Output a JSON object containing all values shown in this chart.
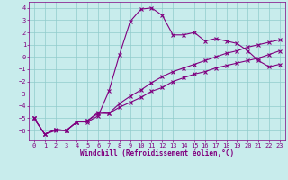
{
  "xlabel": "Windchill (Refroidissement éolien,°C)",
  "ylabel": "",
  "xlim": [
    -0.5,
    23.5
  ],
  "ylim": [
    -6.8,
    4.5
  ],
  "yticks": [
    4,
    3,
    2,
    1,
    0,
    -1,
    -2,
    -3,
    -4,
    -5,
    -6
  ],
  "xticks": [
    0,
    1,
    2,
    3,
    4,
    5,
    6,
    7,
    8,
    9,
    10,
    11,
    12,
    13,
    14,
    15,
    16,
    17,
    18,
    19,
    20,
    21,
    22,
    23
  ],
  "bg_color": "#c8ecec",
  "line_color": "#800080",
  "grid_color": "#90cccc",
  "line1_x": [
    0,
    1,
    2,
    3,
    4,
    5,
    6,
    7,
    8,
    9,
    10,
    11,
    12,
    13,
    14,
    15,
    16,
    17,
    18,
    19,
    20,
    21,
    22,
    23
  ],
  "line1_y": [
    -5.0,
    -6.3,
    -6.0,
    -6.0,
    -5.3,
    -5.3,
    -4.8,
    -2.8,
    0.2,
    2.9,
    3.9,
    4.0,
    3.4,
    1.8,
    1.8,
    2.0,
    1.3,
    1.5,
    1.3,
    1.1,
    0.5,
    -0.3,
    -0.8,
    -0.6
  ],
  "line2_x": [
    0,
    1,
    2,
    3,
    4,
    5,
    6,
    7,
    8,
    9,
    10,
    11,
    12,
    13,
    14,
    15,
    16,
    17,
    18,
    19,
    20,
    21,
    22,
    23
  ],
  "line2_y": [
    -5.0,
    -6.3,
    -5.9,
    -6.0,
    -5.3,
    -5.2,
    -4.6,
    -4.6,
    -4.1,
    -3.7,
    -3.3,
    -2.8,
    -2.5,
    -2.0,
    -1.7,
    -1.4,
    -1.2,
    -0.9,
    -0.7,
    -0.5,
    -0.3,
    -0.1,
    0.2,
    0.5
  ],
  "line3_x": [
    0,
    1,
    2,
    3,
    4,
    5,
    6,
    7,
    8,
    9,
    10,
    11,
    12,
    13,
    14,
    15,
    16,
    17,
    18,
    19,
    20,
    21,
    22,
    23
  ],
  "line3_y": [
    -5.0,
    -6.3,
    -5.9,
    -6.0,
    -5.3,
    -5.2,
    -4.5,
    -4.6,
    -3.8,
    -3.2,
    -2.7,
    -2.1,
    -1.6,
    -1.2,
    -0.9,
    -0.6,
    -0.3,
    0.0,
    0.3,
    0.5,
    0.8,
    1.0,
    1.2,
    1.4
  ],
  "tick_fontsize": 5.0,
  "xlabel_fontsize": 5.5
}
